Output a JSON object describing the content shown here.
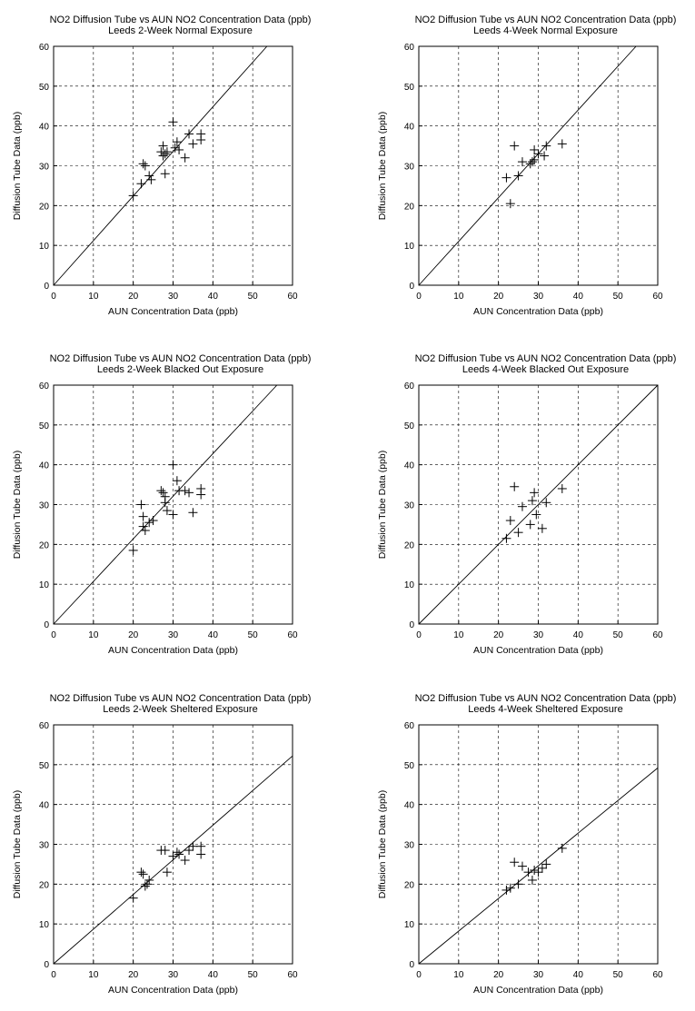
{
  "chart_data": [
    {
      "type": "scatter",
      "title": "NO2 Diffusion Tube vs AUN NO2 Concentration Data (ppb)",
      "subtitle": "Leeds 2-Week Normal Exposure",
      "xlabel": "AUN Concentration Data (ppb)",
      "ylabel": "Diffusion Tube Data (ppb)",
      "xlim": [
        0,
        60
      ],
      "ylim": [
        0,
        60
      ],
      "xticks": [
        0,
        10,
        20,
        30,
        40,
        50,
        60
      ],
      "yticks": [
        0,
        10,
        20,
        30,
        40,
        50,
        60
      ],
      "grid": true,
      "fit_slope": 1.12,
      "x": [
        20,
        22,
        22.5,
        23,
        24,
        24.5,
        27,
        27.5,
        27.5,
        28,
        28,
        28.5,
        30,
        30.5,
        31,
        31.5,
        33,
        34,
        35,
        37,
        37
      ],
      "y": [
        22.5,
        25.5,
        30.5,
        30,
        27.5,
        26.5,
        33.5,
        35,
        32.5,
        33,
        28,
        33.5,
        41,
        34.5,
        36,
        34,
        32,
        38,
        35.5,
        38,
        36.5
      ]
    },
    {
      "type": "scatter",
      "title": "NO2 Diffusion Tube vs AUN NO2 Concentration Data (ppb)",
      "subtitle": "Leeds 4-Week Normal Exposure",
      "xlabel": "AUN Concentration Data (ppb)",
      "ylabel": "Diffusion Tube Data (ppb)",
      "xlim": [
        0,
        60
      ],
      "ylim": [
        0,
        60
      ],
      "xticks": [
        0,
        10,
        20,
        30,
        40,
        50,
        60
      ],
      "yticks": [
        0,
        10,
        20,
        30,
        40,
        50,
        60
      ],
      "grid": true,
      "fit_slope": 1.1,
      "x": [
        22,
        23,
        24,
        25,
        26,
        28,
        28.5,
        29,
        29,
        30,
        31.5,
        32,
        36
      ],
      "y": [
        27,
        20.5,
        35,
        27.5,
        31,
        30.5,
        31,
        34,
        31.5,
        33,
        32.5,
        35,
        35.5
      ]
    },
    {
      "type": "scatter",
      "title": "NO2 Diffusion Tube vs AUN NO2 Concentration Data (ppb)",
      "subtitle": "Leeds 2-Week Blacked Out Exposure",
      "xlabel": "AUN Concentration Data (ppb)",
      "ylabel": "Diffusion Tube Data (ppb)",
      "xlim": [
        0,
        60
      ],
      "ylim": [
        0,
        60
      ],
      "xticks": [
        0,
        10,
        20,
        30,
        40,
        50,
        60
      ],
      "yticks": [
        0,
        10,
        20,
        30,
        40,
        50,
        60
      ],
      "grid": true,
      "fit_slope": 1.07,
      "x": [
        20,
        22,
        22.5,
        22.5,
        23,
        24,
        25,
        27,
        27.5,
        28,
        28,
        28.5,
        30,
        30,
        31,
        31.5,
        33,
        34,
        35,
        37,
        37
      ],
      "y": [
        18.5,
        30,
        27,
        24.5,
        23.5,
        25.5,
        26,
        33.5,
        33,
        32,
        30.5,
        28.5,
        40,
        27.5,
        36,
        33.5,
        33.5,
        33,
        28,
        34,
        32.5
      ]
    },
    {
      "type": "scatter",
      "title": "NO2 Diffusion Tube vs AUN NO2 Concentration Data (ppb)",
      "subtitle": "Leeds 4-Week Blacked Out Exposure",
      "xlabel": "AUN Concentration Data (ppb)",
      "ylabel": "Diffusion Tube Data (ppb)",
      "xlim": [
        0,
        60
      ],
      "ylim": [
        0,
        60
      ],
      "xticks": [
        0,
        10,
        20,
        30,
        40,
        50,
        60
      ],
      "yticks": [
        0,
        10,
        20,
        30,
        40,
        50,
        60
      ],
      "grid": true,
      "fit_slope": 1.0,
      "x": [
        22,
        23,
        24,
        25,
        26,
        28,
        28.5,
        29,
        29.5,
        31,
        32,
        36
      ],
      "y": [
        21.5,
        26,
        34.5,
        23,
        29.5,
        25,
        31,
        33,
        27.5,
        24,
        30.5,
        34
      ]
    },
    {
      "type": "scatter",
      "title": "NO2 Diffusion Tube vs AUN NO2 Concentration Data (ppb)",
      "subtitle": "Leeds 2-Week Sheltered Exposure",
      "xlabel": "AUN Concentration Data (ppb)",
      "ylabel": "Diffusion Tube Data (ppb)",
      "xlim": [
        0,
        60
      ],
      "ylim": [
        0,
        60
      ],
      "xticks": [
        0,
        10,
        20,
        30,
        40,
        50,
        60
      ],
      "yticks": [
        0,
        10,
        20,
        30,
        40,
        50,
        60
      ],
      "grid": true,
      "fit_slope": 0.87,
      "x": [
        20,
        22,
        22.5,
        23,
        23.5,
        24,
        27,
        28,
        28.5,
        30,
        31,
        31.5,
        33,
        34,
        35,
        37,
        37
      ],
      "y": [
        16.5,
        23,
        22.5,
        19.5,
        20,
        21,
        28.5,
        28.5,
        23,
        27,
        28,
        27.5,
        26,
        28.5,
        29.5,
        29.5,
        27.5
      ]
    },
    {
      "type": "scatter",
      "title": "NO2 Diffusion Tube vs AUN NO2 Concentration Data (ppb)",
      "subtitle": "Leeds 4-Week Sheltered Exposure",
      "xlabel": "AUN Concentration Data (ppb)",
      "ylabel": "Diffusion Tube Data (ppb)",
      "xlim": [
        0,
        60
      ],
      "ylim": [
        0,
        60
      ],
      "xticks": [
        0,
        10,
        20,
        30,
        40,
        50,
        60
      ],
      "yticks": [
        0,
        10,
        20,
        30,
        40,
        50,
        60
      ],
      "grid": true,
      "fit_slope": 0.82,
      "x": [
        22,
        23,
        24,
        25,
        26,
        27.5,
        28.5,
        29,
        30,
        31,
        32,
        36
      ],
      "y": [
        18.5,
        19,
        25.5,
        20,
        24.5,
        23,
        21,
        23.5,
        23,
        24,
        25,
        29
      ]
    }
  ]
}
